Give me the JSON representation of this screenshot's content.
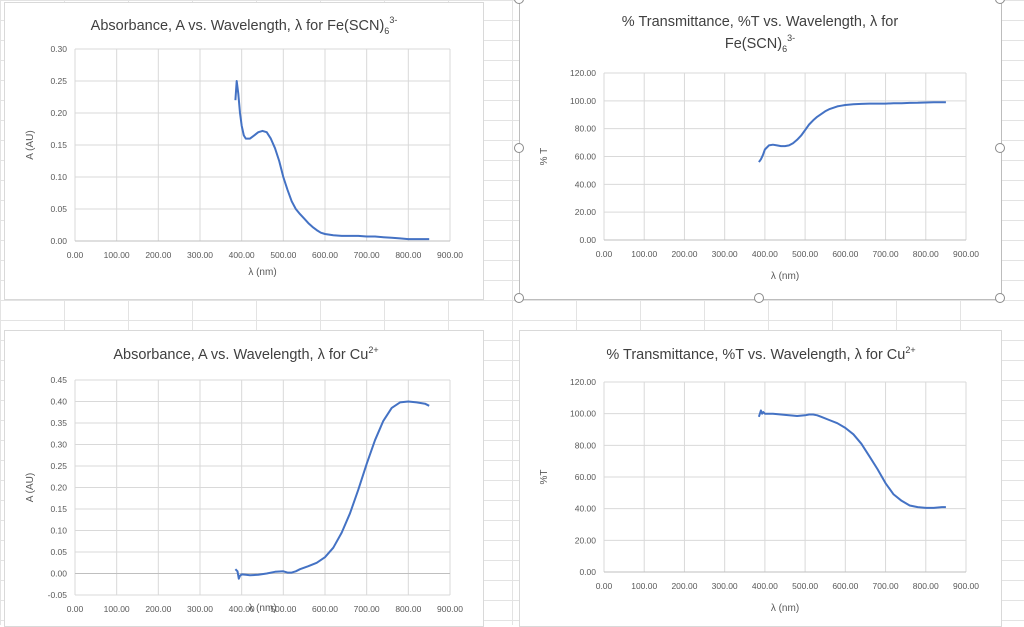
{
  "chart_data": [
    {
      "type": "line",
      "title": "Absorbance, A vs. Wavelength, λ for Fe(SCN)",
      "title_sub": "6",
      "title_sup": "3-",
      "xlabel": "λ (nm)",
      "ylabel": "A (AU)",
      "xlim": [
        0,
        900
      ],
      "ylim": [
        0,
        0.3
      ],
      "x_ticks": [
        0,
        100,
        200,
        300,
        400,
        500,
        600,
        700,
        800,
        900
      ],
      "y_ticks": [
        0,
        0.05,
        0.1,
        0.15,
        0.2,
        0.25,
        0.3
      ],
      "x_tick_labels": [
        "0.00",
        "100.00",
        "200.00",
        "300.00",
        "400.00",
        "500.00",
        "600.00",
        "700.00",
        "800.00",
        "900.00"
      ],
      "y_tick_labels": [
        "0.00",
        "0.05",
        "0.10",
        "0.15",
        "0.20",
        "0.25",
        "0.30"
      ],
      "grid": true,
      "series_color": "#4472c4",
      "series": [
        {
          "x": [
            385,
            388,
            392,
            396,
            400,
            405,
            410,
            420,
            430,
            440,
            450,
            460,
            470,
            480,
            490,
            500,
            510,
            520,
            530,
            540,
            550,
            560,
            570,
            580,
            590,
            600,
            620,
            640,
            660,
            680,
            700,
            720,
            740,
            760,
            780,
            800,
            820,
            840,
            850
          ],
          "y": [
            0.22,
            0.25,
            0.23,
            0.2,
            0.18,
            0.165,
            0.16,
            0.16,
            0.165,
            0.17,
            0.172,
            0.17,
            0.16,
            0.145,
            0.125,
            0.1,
            0.08,
            0.062,
            0.05,
            0.042,
            0.035,
            0.028,
            0.022,
            0.017,
            0.013,
            0.011,
            0.009,
            0.008,
            0.008,
            0.008,
            0.007,
            0.007,
            0.006,
            0.005,
            0.004,
            0.003,
            0.003,
            0.003,
            0.003
          ]
        }
      ]
    },
    {
      "type": "line",
      "title": "% Transmittance, %T vs. Wavelength, λ for",
      "title_line2": "Fe(SCN)",
      "title_sub": "6",
      "title_sup": "3-",
      "xlabel": "λ (nm)",
      "ylabel": "% T",
      "xlim": [
        0,
        900
      ],
      "ylim": [
        0,
        120
      ],
      "x_ticks": [
        0,
        100,
        200,
        300,
        400,
        500,
        600,
        700,
        800,
        900
      ],
      "y_ticks": [
        0,
        20,
        40,
        60,
        80,
        100,
        120
      ],
      "x_tick_labels": [
        "0.00",
        "100.00",
        "200.00",
        "300.00",
        "400.00",
        "500.00",
        "600.00",
        "700.00",
        "800.00",
        "900.00"
      ],
      "y_tick_labels": [
        "0.00",
        "20.00",
        "40.00",
        "60.00",
        "80.00",
        "100.00",
        "120.00"
      ],
      "grid": true,
      "series_color": "#4472c4",
      "series": [
        {
          "x": [
            385,
            390,
            395,
            400,
            410,
            420,
            430,
            440,
            450,
            460,
            470,
            480,
            490,
            500,
            510,
            520,
            530,
            540,
            550,
            560,
            570,
            580,
            590,
            600,
            620,
            640,
            660,
            680,
            700,
            720,
            740,
            760,
            780,
            800,
            820,
            840,
            850
          ],
          "y": [
            56,
            58,
            61,
            65,
            68,
            68.5,
            68,
            67.5,
            67.5,
            68,
            69.5,
            72,
            75,
            79,
            83,
            86,
            88.5,
            90.5,
            92.5,
            94,
            95,
            96,
            96.5,
            97,
            97.5,
            97.8,
            98,
            98,
            98,
            98.2,
            98.3,
            98.5,
            98.6,
            98.8,
            99,
            99,
            99
          ]
        }
      ]
    },
    {
      "type": "line",
      "title": "Absorbance, A vs. Wavelength, λ for Cu",
      "title_sup": "2+",
      "xlabel": "λ (nm)",
      "ylabel": "A (AU)",
      "xlim": [
        0,
        900
      ],
      "ylim": [
        -0.05,
        0.45
      ],
      "x_ticks": [
        0,
        100,
        200,
        300,
        400,
        500,
        600,
        700,
        800,
        900
      ],
      "y_ticks": [
        -0.05,
        0,
        0.05,
        0.1,
        0.15,
        0.2,
        0.25,
        0.3,
        0.35,
        0.4,
        0.45
      ],
      "x_tick_labels": [
        "0.00",
        "100.00",
        "200.00",
        "300.00",
        "400.00",
        "500.00",
        "600.00",
        "700.00",
        "800.00",
        "900.00"
      ],
      "y_tick_labels": [
        "-0.05",
        "0.00",
        "0.05",
        "0.10",
        "0.15",
        "0.20",
        "0.25",
        "0.30",
        "0.35",
        "0.40",
        "0.45"
      ],
      "grid": true,
      "series_color": "#4472c4",
      "series": [
        {
          "x": [
            385,
            390,
            393,
            396,
            400,
            410,
            420,
            440,
            460,
            480,
            500,
            510,
            520,
            530,
            540,
            560,
            580,
            600,
            620,
            640,
            660,
            680,
            700,
            720,
            740,
            760,
            780,
            800,
            820,
            840,
            850
          ],
          "y": [
            0.01,
            0.005,
            -0.012,
            -0.005,
            -0.002,
            -0.003,
            -0.004,
            -0.003,
            0,
            0.004,
            0.005,
            0.002,
            0.002,
            0.005,
            0.01,
            0.017,
            0.025,
            0.038,
            0.06,
            0.095,
            0.14,
            0.195,
            0.255,
            0.31,
            0.355,
            0.385,
            0.398,
            0.4,
            0.398,
            0.395,
            0.39
          ]
        }
      ]
    },
    {
      "type": "line",
      "title": "% Transmittance, %T vs. Wavelength, λ for Cu",
      "title_sup": "2+",
      "xlabel": "λ (nm)",
      "ylabel": "%T",
      "xlim": [
        0,
        900
      ],
      "ylim": [
        0,
        120
      ],
      "x_ticks": [
        0,
        100,
        200,
        300,
        400,
        500,
        600,
        700,
        800,
        900
      ],
      "y_ticks": [
        0,
        20,
        40,
        60,
        80,
        100,
        120
      ],
      "x_tick_labels": [
        "0.00",
        "100.00",
        "200.00",
        "300.00",
        "400.00",
        "500.00",
        "600.00",
        "700.00",
        "800.00",
        "900.00"
      ],
      "y_tick_labels": [
        "0.00",
        "20.00",
        "40.00",
        "60.00",
        "80.00",
        "100.00",
        "120.00"
      ],
      "grid": true,
      "series_color": "#4472c4",
      "series": [
        {
          "x": [
            385,
            390,
            393,
            396,
            400,
            420,
            440,
            460,
            480,
            500,
            510,
            520,
            530,
            540,
            560,
            580,
            600,
            620,
            640,
            660,
            680,
            700,
            720,
            740,
            760,
            780,
            800,
            820,
            840,
            850
          ],
          "y": [
            98,
            102,
            100,
            101,
            100,
            100,
            99.5,
            99,
            98.5,
            99,
            99.5,
            99.5,
            99,
            98,
            96,
            94,
            91,
            87,
            81,
            73,
            65,
            56,
            49,
            45,
            42,
            41,
            40.5,
            40.5,
            41,
            41
          ]
        }
      ]
    }
  ]
}
